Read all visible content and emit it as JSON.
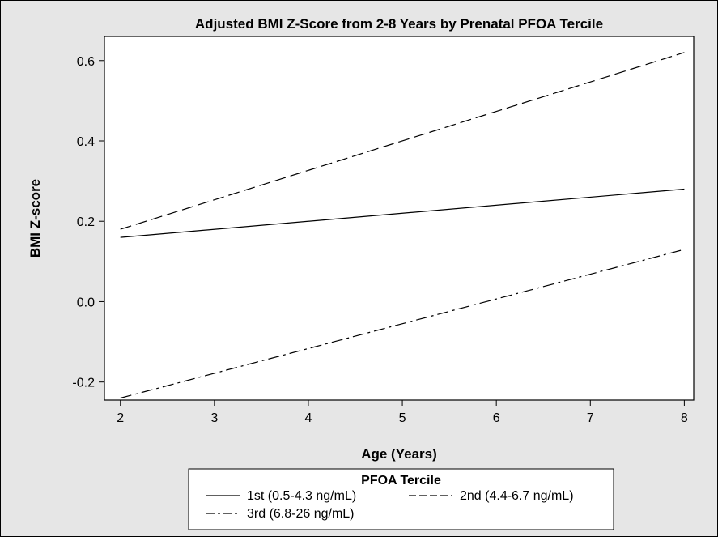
{
  "chart_data": {
    "type": "line",
    "title": "Adjusted BMI Z-Score from 2-8 Years by Prenatal PFOA Tercile",
    "xlabel": "Age (Years)",
    "ylabel": "BMI Z-score",
    "xlim": [
      1.83,
      8.1
    ],
    "ylim": [
      -0.245,
      0.66
    ],
    "x_ticks": [
      2,
      3,
      4,
      5,
      6,
      7,
      8
    ],
    "x_tick_labels": [
      "2",
      "3",
      "4",
      "5",
      "6",
      "7",
      "8"
    ],
    "y_ticks": [
      -0.2,
      0.0,
      0.2,
      0.4,
      0.6
    ],
    "y_tick_labels": [
      "-0.2",
      "0.0",
      "0.2",
      "0.4",
      "0.6"
    ],
    "grid": false,
    "legend": {
      "title": "PFOA Tercile",
      "placement": "bottom"
    },
    "series": [
      {
        "name": "1st (0.5-4.3 ng/mL)",
        "dash": "solid",
        "x": [
          2,
          8
        ],
        "y": [
          0.16,
          0.28
        ]
      },
      {
        "name": "2nd (4.4-6.7 ng/mL)",
        "dash": "dashed",
        "x": [
          2,
          8
        ],
        "y": [
          0.18,
          0.62
        ]
      },
      {
        "name": "3rd (6.8-26 ng/mL)",
        "dash": "dashdot",
        "x": [
          2,
          8
        ],
        "y": [
          -0.24,
          0.13
        ]
      }
    ]
  },
  "colors": {
    "outer_background": "#e6e6e6",
    "plot_background": "#ffffff",
    "line": "#000000"
  }
}
